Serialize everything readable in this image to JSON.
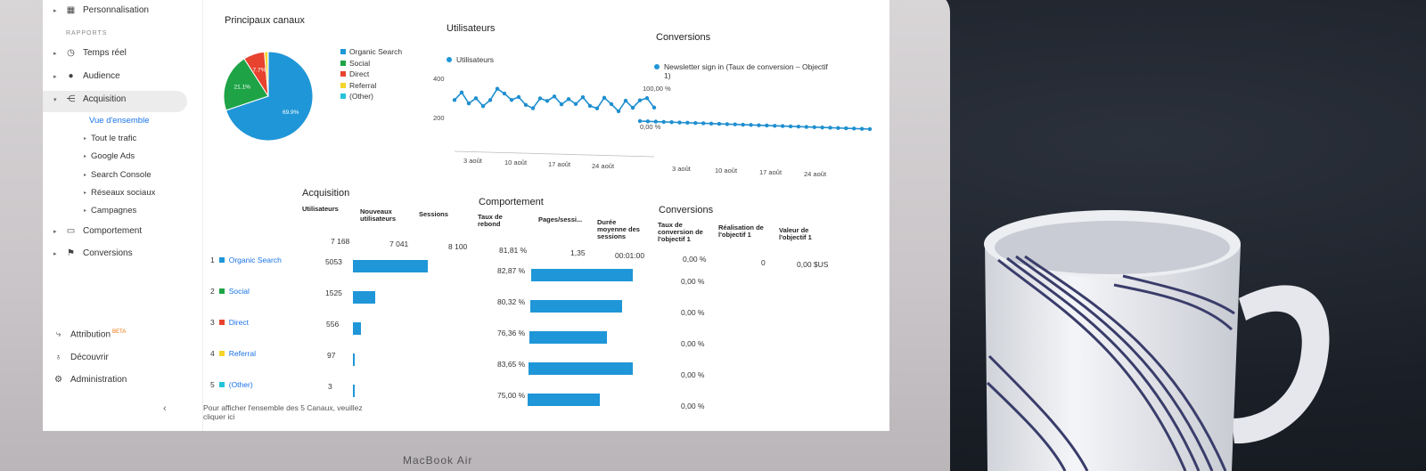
{
  "sidebar": {
    "top_item": "Personnalisation",
    "section": "RAPPORTS",
    "items": [
      {
        "label": "Temps réel",
        "icon": "clock-icon"
      },
      {
        "label": "Audience",
        "icon": "person-icon"
      },
      {
        "label": "Acquisition",
        "icon": "acquisition-icon"
      },
      {
        "label": "Comportement",
        "icon": "behavior-icon"
      },
      {
        "label": "Conversions",
        "icon": "flag-icon"
      }
    ],
    "acquisition_sub": [
      "Vue d'ensemble",
      "Tout le trafic",
      "Google Ads",
      "Search Console",
      "Réseaux sociaux",
      "Campagnes"
    ],
    "bottom": [
      {
        "label": "Attribution",
        "badge": "BETA",
        "icon": "attribution-icon"
      },
      {
        "label": "Découvrir",
        "icon": "lightbulb-icon"
      },
      {
        "label": "Administration",
        "icon": "gear-icon"
      }
    ]
  },
  "channels_card": {
    "title": "Principaux canaux",
    "slices": [
      {
        "name": "Organic Search",
        "value": 69.9,
        "color": "#1f96d8",
        "label": "69.9%"
      },
      {
        "name": "Social",
        "value": 21.1,
        "color": "#1ea446",
        "label": "21.1%"
      },
      {
        "name": "Direct",
        "value": 7.7,
        "color": "#e8432e",
        "label": "7.7%"
      },
      {
        "name": "Referral",
        "value": 1.3,
        "color": "#f4d52a",
        "label": ""
      },
      {
        "name": "(Other)",
        "value": 0.1,
        "color": "#23c4d9",
        "label": ""
      }
    ]
  },
  "users_card": {
    "title": "Utilisateurs",
    "legend": "Utilisateurs",
    "y_ticks": [
      "400",
      "200"
    ],
    "x_ticks": [
      "3 août",
      "10 août",
      "17 août",
      "24 août"
    ],
    "values": [
      260,
      310,
      240,
      275,
      225,
      265,
      340,
      310,
      270,
      290,
      240,
      220,
      285,
      270,
      300,
      250,
      285,
      255,
      300,
      245,
      230,
      300,
      260,
      215,
      285,
      240,
      290,
      305,
      245
    ]
  },
  "conversions_card": {
    "title": "Conversions",
    "legend": "Newsletter sign in (Taux de conversion – Objectif 1)",
    "y_ticks": [
      "100,00 %",
      "0,00 %"
    ],
    "x_ticks": [
      "3 août",
      "10 août",
      "17 août",
      "24 août"
    ],
    "values": [
      0,
      0,
      0,
      0,
      0,
      0,
      0,
      0,
      0,
      0,
      0,
      0,
      0,
      0,
      0,
      0,
      0,
      0,
      0,
      0,
      0,
      0,
      0,
      0,
      0,
      0,
      0,
      0,
      0,
      0
    ]
  },
  "table": {
    "acquisition_title": "Acquisition",
    "behavior_title": "Comportement",
    "conversions_title": "Conversions",
    "headers": {
      "users": "Utilisateurs",
      "new_users": "Nouveaux utilisateurs",
      "sessions": "Sessions",
      "bounce": "Taux de rebond",
      "pages": "Pages/sessi...",
      "duration": "Durée moyenne des sessions",
      "conv_rate": "Taux de conversion de l'objectif 1",
      "completions": "Réalisation de l'objectif 1",
      "value": "Valeur de l'objectif 1"
    },
    "totals": {
      "users": "7 168",
      "new_users": "7 041",
      "sessions": "8 100",
      "bounce": "81,81 %",
      "pages": "1,35",
      "duration": "00:01:00",
      "conv_rate": "0,00 %",
      "completions": "0",
      "value": "0,00 $US"
    },
    "rows": [
      {
        "num": "1",
        "name": "Organic Search",
        "color": "#1f96d8",
        "users": "5053",
        "users_value": 5053,
        "bounce": "82,87 %",
        "bounce_value": 82.87,
        "conv": "0,00 %"
      },
      {
        "num": "2",
        "name": "Social",
        "color": "#1ea446",
        "users": "1525",
        "users_value": 1525,
        "bounce": "80,32 %",
        "bounce_value": 80.32,
        "conv": "0,00 %"
      },
      {
        "num": "3",
        "name": "Direct",
        "color": "#e8432e",
        "users": "556",
        "users_value": 556,
        "bounce": "76,36 %",
        "bounce_value": 76.36,
        "conv": "0,00 %"
      },
      {
        "num": "4",
        "name": "Referral",
        "color": "#f4d52a",
        "users": "97",
        "users_value": 97,
        "bounce": "83,65 %",
        "bounce_value": 83.65,
        "conv": "0,00 %"
      },
      {
        "num": "5",
        "name": "(Other)",
        "color": "#23c4d9",
        "users": "3",
        "users_value": 3,
        "bounce": "75,00 %",
        "bounce_value": 75.0,
        "conv": "0,00 %"
      }
    ],
    "footer": "Pour afficher l'ensemble des 5 Canaux, veuillez cliquer ici"
  },
  "laptop_brand": "MacBook Air"
}
